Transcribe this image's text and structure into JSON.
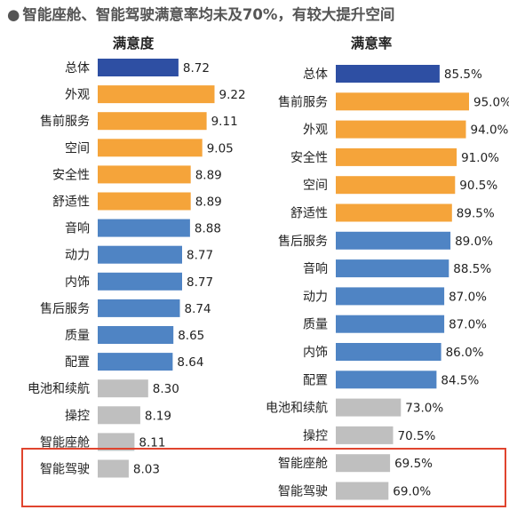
{
  "header": {
    "bullet": "●",
    "title": "智能座舱、智能驾驶满意率均未及70%，有较大提升空间"
  },
  "colors": {
    "total": "#2e4fa3",
    "orange": "#f5a43a",
    "blue": "#4f84c4",
    "gray": "#bfbfbf",
    "highlight": "#e0442e"
  },
  "chart_data": [
    {
      "type": "bar",
      "orientation": "horizontal",
      "title": "满意度",
      "categories": [
        "总体",
        "外观",
        "售前服务",
        "空间",
        "安全性",
        "舒适性",
        "音响",
        "动力",
        "内饰",
        "售后服务",
        "质量",
        "配置",
        "电池和续航",
        "操控",
        "智能座舱",
        "智能驾驶"
      ],
      "values": [
        8.72,
        9.22,
        9.11,
        9.05,
        8.89,
        8.89,
        8.88,
        8.77,
        8.77,
        8.74,
        8.65,
        8.64,
        8.3,
        8.19,
        8.11,
        8.03
      ],
      "labels": [
        "8.72",
        "9.22",
        "9.11",
        "9.05",
        "8.89",
        "8.89",
        "8.88",
        "8.77",
        "8.77",
        "8.74",
        "8.65",
        "8.64",
        "8.30",
        "8.19",
        "8.11",
        "8.03"
      ],
      "color_groups": [
        "total",
        "orange",
        "orange",
        "orange",
        "orange",
        "orange",
        "blue",
        "blue",
        "blue",
        "blue",
        "blue",
        "blue",
        "gray",
        "gray",
        "gray",
        "gray"
      ],
      "xlim": [
        7.6,
        9.3
      ]
    },
    {
      "type": "bar",
      "orientation": "horizontal",
      "title": "满意率",
      "categories": [
        "总体",
        "售前服务",
        "外观",
        "安全性",
        "空间",
        "舒适性",
        "售后服务",
        "音响",
        "动力",
        "质量",
        "内饰",
        "配置",
        "电池和续航",
        "操控",
        "智能座舱",
        "智能驾驶"
      ],
      "values": [
        85.5,
        95.0,
        94.0,
        91.0,
        90.5,
        89.5,
        89.0,
        88.5,
        87.0,
        87.0,
        86.0,
        84.5,
        73.0,
        70.5,
        69.5,
        69.0
      ],
      "labels": [
        "85.5%",
        "95.0%",
        "94.0%",
        "91.0%",
        "90.5%",
        "89.5%",
        "89.0%",
        "88.5%",
        "87.0%",
        "87.0%",
        "86.0%",
        "84.5%",
        "73.0%",
        "70.5%",
        "69.5%",
        "69.0%"
      ],
      "color_groups": [
        "total",
        "orange",
        "orange",
        "orange",
        "orange",
        "orange",
        "blue",
        "blue",
        "blue",
        "blue",
        "blue",
        "blue",
        "gray",
        "gray",
        "gray",
        "gray"
      ],
      "xlim": [
        52,
        97
      ]
    }
  ]
}
